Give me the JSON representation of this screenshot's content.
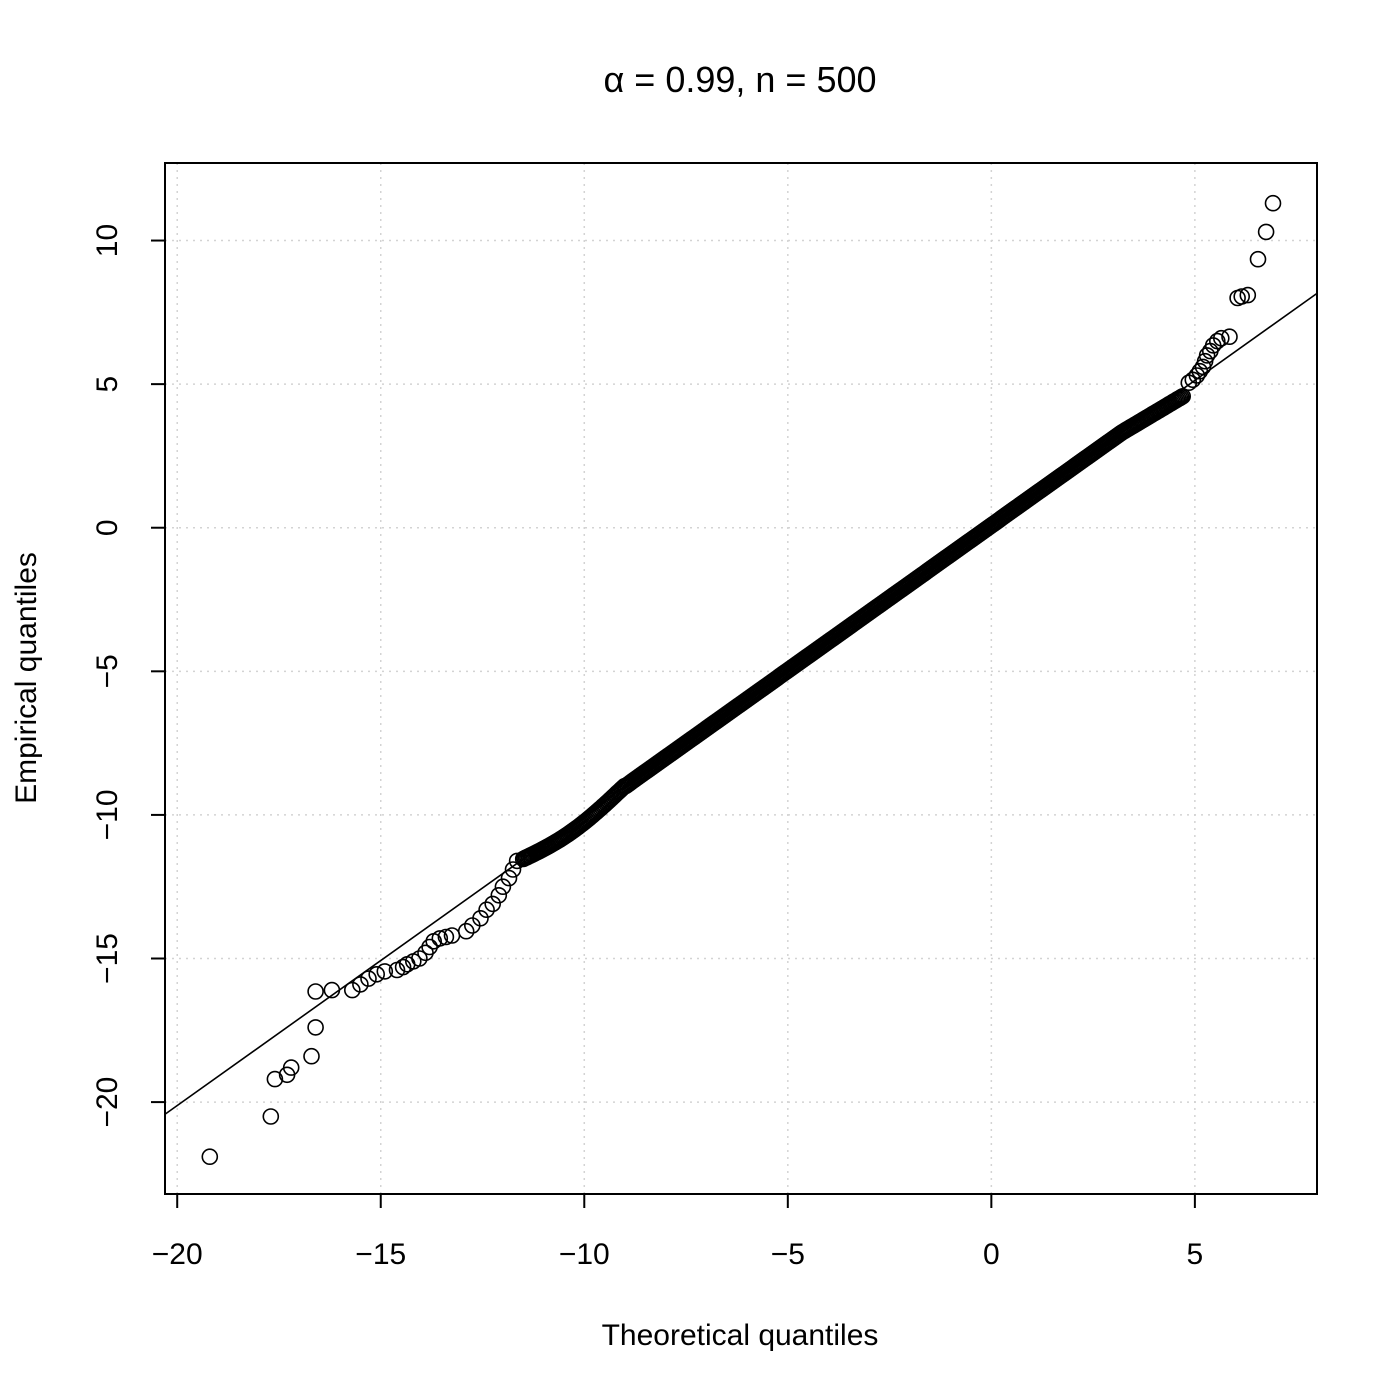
{
  "chart_data": {
    "type": "scatter",
    "title": "α = 0.99, n = 500",
    "xlabel": "Theoretical quantiles",
    "ylabel": "Empirical quantiles",
    "xlim": [
      -20.3,
      8.0
    ],
    "ylim": [
      -23.2,
      12.7
    ],
    "xticks": [
      -20,
      -15,
      -10,
      -5,
      0,
      5
    ],
    "yticks": [
      -20,
      -15,
      -10,
      -5,
      0,
      5,
      10
    ],
    "xtick_labels": [
      "−20",
      "−15",
      "−10",
      "−5",
      "0",
      "5"
    ],
    "ytick_labels": [
      "−20",
      "−15",
      "−10",
      "−5",
      "0",
      "5",
      "10"
    ],
    "grid": true,
    "reference_line": {
      "slope": 1.01,
      "intercept": 0.08
    },
    "bulk": {
      "x_start": -11.5,
      "x_end": 4.7,
      "count": 470
    },
    "points": [
      [
        -19.2,
        -21.9
      ],
      [
        -17.7,
        -20.5
      ],
      [
        -17.6,
        -19.2
      ],
      [
        -17.3,
        -19.05
      ],
      [
        -17.2,
        -18.8
      ],
      [
        -16.7,
        -18.4
      ],
      [
        -16.6,
        -17.4
      ],
      [
        -16.6,
        -16.15
      ],
      [
        -16.2,
        -16.1
      ],
      [
        -15.7,
        -16.1
      ],
      [
        -15.5,
        -15.9
      ],
      [
        -15.3,
        -15.7
      ],
      [
        -15.1,
        -15.55
      ],
      [
        -14.9,
        -15.45
      ],
      [
        -14.6,
        -15.4
      ],
      [
        -14.45,
        -15.3
      ],
      [
        -14.35,
        -15.2
      ],
      [
        -14.2,
        -15.1
      ],
      [
        -14.05,
        -15.0
      ],
      [
        -13.9,
        -14.8
      ],
      [
        -13.8,
        -14.6
      ],
      [
        -13.7,
        -14.4
      ],
      [
        -13.55,
        -14.3
      ],
      [
        -13.4,
        -14.25
      ],
      [
        -13.25,
        -14.2
      ],
      [
        -12.9,
        -14.05
      ],
      [
        -12.75,
        -13.85
      ],
      [
        -12.55,
        -13.6
      ],
      [
        -12.4,
        -13.3
      ],
      [
        -12.25,
        -13.1
      ],
      [
        -12.1,
        -12.8
      ],
      [
        -12.0,
        -12.5
      ],
      [
        -11.85,
        -12.2
      ],
      [
        -11.75,
        -11.9
      ],
      [
        -11.65,
        -11.6
      ],
      [
        4.85,
        5.05
      ],
      [
        4.95,
        5.15
      ],
      [
        5.05,
        5.3
      ],
      [
        5.12,
        5.45
      ],
      [
        5.2,
        5.6
      ],
      [
        5.25,
        5.8
      ],
      [
        5.3,
        6.0
      ],
      [
        5.38,
        6.15
      ],
      [
        5.45,
        6.35
      ],
      [
        5.55,
        6.5
      ],
      [
        5.65,
        6.6
      ],
      [
        5.85,
        6.65
      ],
      [
        6.05,
        8.0
      ],
      [
        6.15,
        8.05
      ],
      [
        6.3,
        8.1
      ],
      [
        6.55,
        9.35
      ],
      [
        6.75,
        10.3
      ],
      [
        6.92,
        11.3
      ]
    ]
  }
}
